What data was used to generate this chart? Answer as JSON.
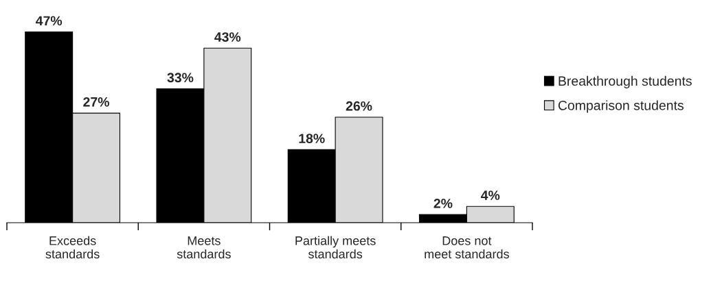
{
  "chart_data": {
    "type": "bar",
    "categories": [
      "Exceeds\nstandards",
      "Meets\nstandards",
      "Partially meets\nstandards",
      "Does not\nmeet standards"
    ],
    "series": [
      {
        "name": "Breakthrough students",
        "color": "#000000",
        "values": [
          47,
          33,
          18,
          2
        ],
        "value_labels": [
          "47%",
          "33%",
          "18%",
          "2%"
        ]
      },
      {
        "name": "Comparison students",
        "color": "#d9d9d9",
        "values": [
          27,
          43,
          26,
          4
        ],
        "value_labels": [
          "27%",
          "43%",
          "26%",
          "4%"
        ]
      }
    ],
    "legend": "right",
    "grid": false
  }
}
